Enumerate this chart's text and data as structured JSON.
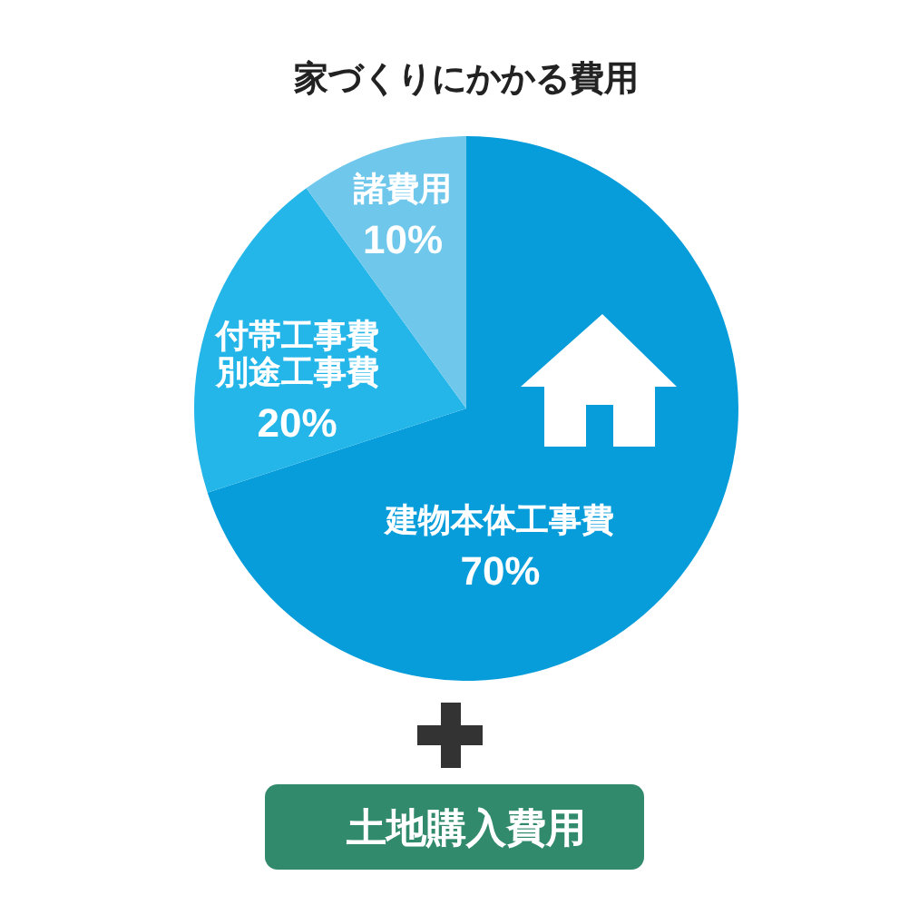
{
  "chart_data": {
    "type": "pie",
    "title": "家づくりにかかる費用",
    "categories": [
      "建物本体工事費",
      "付帯工事費別途工事費",
      "諸費用"
    ],
    "values": [
      70,
      20,
      10
    ],
    "value_labels": [
      "70%",
      "20%",
      "10%"
    ],
    "colors": [
      "#079ddb",
      "#24b6e9",
      "#6fc8ec"
    ],
    "annotations": [
      "土地購入費用"
    ]
  }
}
